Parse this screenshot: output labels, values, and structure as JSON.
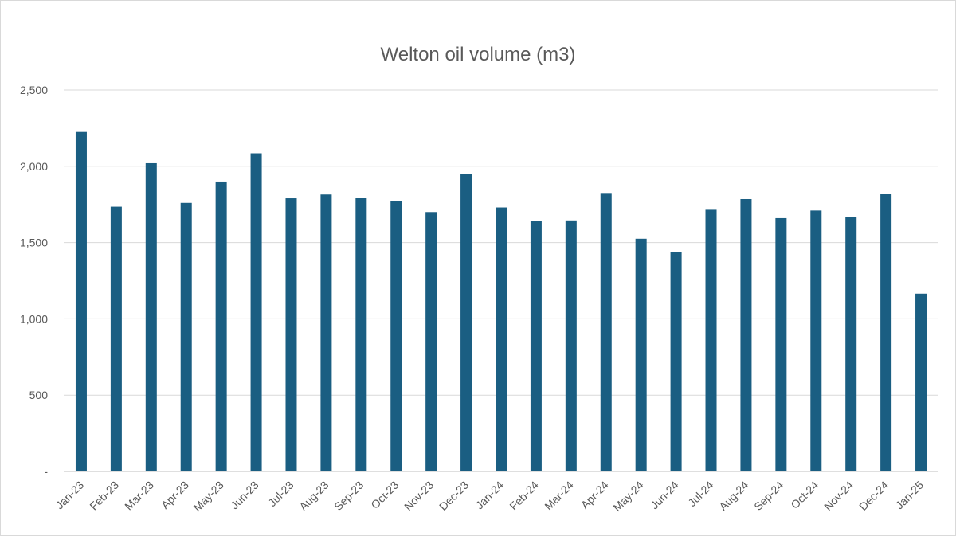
{
  "chart_data": {
    "type": "bar",
    "title": "Welton oil volume (m3)",
    "xlabel": "",
    "ylabel": "",
    "ylim": [
      0,
      2500
    ],
    "y_ticks": [
      0,
      500,
      1000,
      1500,
      2000,
      2500
    ],
    "y_tick_labels": [
      "-",
      "500",
      "1,000",
      "1,500",
      "2,000",
      "2,500"
    ],
    "grid": true,
    "legend": "none",
    "bar_color": "#1a5e82",
    "categories": [
      "Jan-23",
      "Feb-23",
      "Mar-23",
      "Apr-23",
      "May-23",
      "Jun-23",
      "Jul-23",
      "Aug-23",
      "Sep-23",
      "Oct-23",
      "Nov-23",
      "Dec-23",
      "Jan-24",
      "Feb-24",
      "Mar-24",
      "Apr-24",
      "May-24",
      "Jun-24",
      "Jul-24",
      "Aug-24",
      "Sep-24",
      "Oct-24",
      "Nov-24",
      "Dec-24",
      "Jan-25"
    ],
    "values": [
      2225,
      1735,
      2020,
      1760,
      1900,
      2085,
      1790,
      1815,
      1795,
      1770,
      1700,
      1950,
      1730,
      1640,
      1645,
      1825,
      1525,
      1440,
      1715,
      1785,
      1660,
      1710,
      1670,
      1820,
      1165
    ]
  }
}
